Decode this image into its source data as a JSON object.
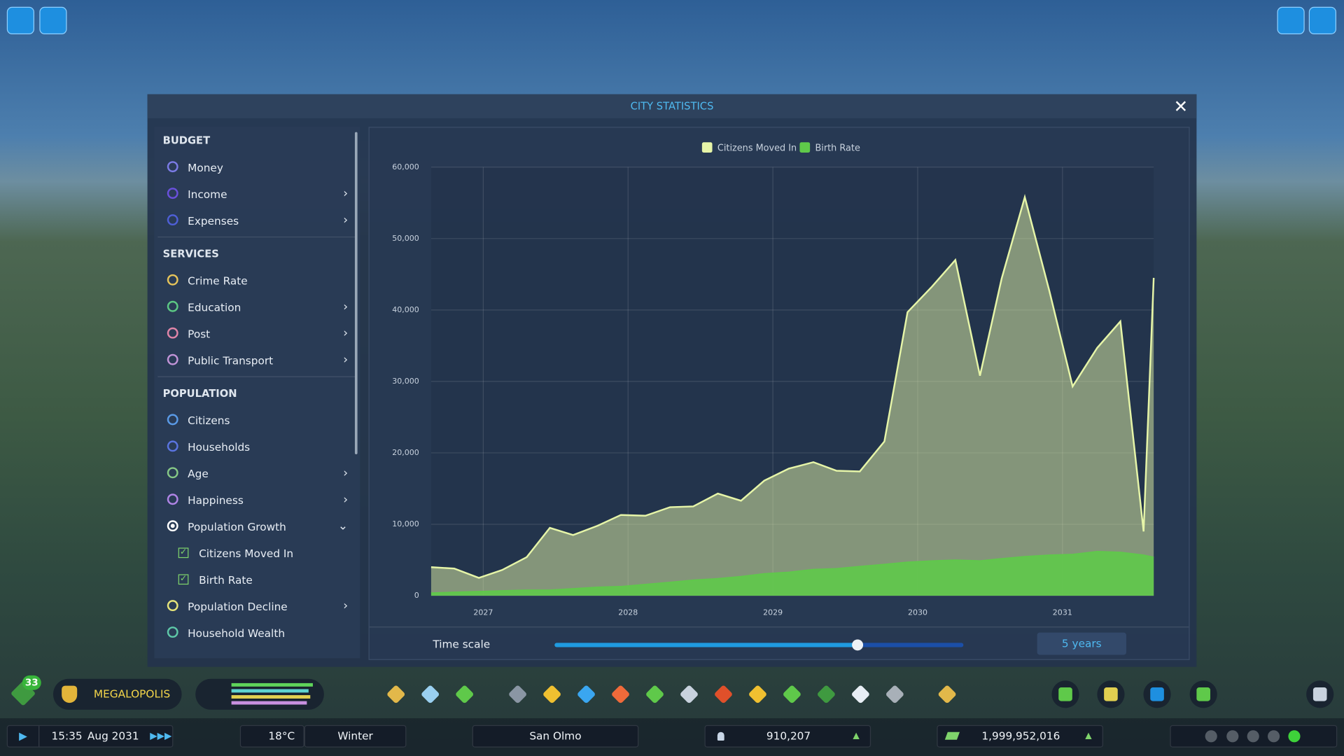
{
  "window": {
    "title": "CITY STATISTICS"
  },
  "sidebar": {
    "sections": [
      {
        "title": "BUDGET",
        "items": [
          {
            "label": "Money"
          },
          {
            "label": "Income",
            "submenu": true
          },
          {
            "label": "Expenses",
            "submenu": true
          }
        ]
      },
      {
        "title": "SERVICES",
        "items": [
          {
            "label": "Crime Rate"
          },
          {
            "label": "Education",
            "submenu": true
          },
          {
            "label": "Post",
            "submenu": true
          },
          {
            "label": "Public Transport",
            "submenu": true
          }
        ]
      },
      {
        "title": "POPULATION",
        "items": [
          {
            "label": "Citizens"
          },
          {
            "label": "Households"
          },
          {
            "label": "Age",
            "submenu": true
          },
          {
            "label": "Happiness",
            "submenu": true
          },
          {
            "label": "Population Growth",
            "selected": true,
            "expanded": true,
            "children": [
              {
                "label": "Citizens Moved In",
                "checked": true
              },
              {
                "label": "Birth Rate",
                "checked": true
              }
            ]
          },
          {
            "label": "Population Decline",
            "submenu": true
          },
          {
            "label": "Household Wealth"
          }
        ]
      }
    ]
  },
  "chart_data": {
    "type": "area",
    "x": [
      2026.64,
      2026.8,
      2026.97,
      2027.13,
      2027.3,
      2027.46,
      2027.62,
      2027.79,
      2027.95,
      2028.12,
      2028.29,
      2028.45,
      2028.62,
      2028.78,
      2028.94,
      2029.11,
      2029.28,
      2029.44,
      2029.6,
      2029.77,
      2029.93,
      2030.1,
      2030.26,
      2030.43,
      2030.58,
      2030.74,
      2030.91,
      2031.07,
      2031.24,
      2031.4,
      2031.56,
      2031.63
    ],
    "series": [
      {
        "name": "Citizens Moved In",
        "color": "#e6f5a8",
        "values": [
          4000,
          3800,
          2500,
          3600,
          5400,
          9500,
          8500,
          9800,
          11300,
          11200,
          12400,
          12500,
          14300,
          13300,
          16100,
          17800,
          18700,
          17500,
          17400,
          21600,
          39700,
          43300,
          47000,
          30800,
          44400,
          55800,
          42600,
          29300,
          34700,
          38400,
          9000,
          44500
        ]
      },
      {
        "name": "Birth Rate",
        "color": "#5fc94a",
        "values": [
          400,
          500,
          600,
          700,
          800,
          800,
          1000,
          1200,
          1300,
          1600,
          1900,
          2200,
          2400,
          2700,
          3100,
          3300,
          3700,
          3800,
          4100,
          4400,
          4700,
          4900,
          5000,
          4900,
          5200,
          5500,
          5700,
          5800,
          6200,
          6100,
          5700,
          5400
        ]
      }
    ],
    "xlim": [
      2026.64,
      2031.63
    ],
    "xticks": [
      2027,
      2028,
      2029,
      2030,
      2031
    ],
    "ylim": [
      0,
      60000
    ],
    "yticks": [
      0,
      {
        "value": 10000,
        "label": "10,000"
      },
      {
        "value": 20000,
        "label": "20,000"
      },
      {
        "value": 30000,
        "label": "30,000"
      },
      {
        "value": 40000,
        "label": "40,000"
      },
      {
        "value": 50000,
        "label": "50,000"
      },
      {
        "value": 60000,
        "label": "60,000"
      }
    ],
    "grid": true
  },
  "time_scale": {
    "label": "Time scale",
    "value": "5 years"
  },
  "toolbar": {
    "badge": "33",
    "milestone": "MEGALOPOLIS"
  },
  "status_bar": {
    "time": "15:35",
    "date": "Aug 2031",
    "temperature": "18°C",
    "season": "Winter",
    "city": "San Olmo",
    "population": "910,207",
    "money": "1,999,952,016"
  }
}
